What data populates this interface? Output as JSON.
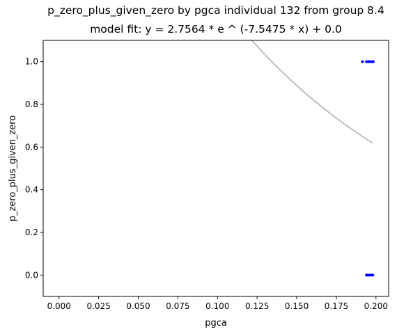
{
  "chart_data": {
    "type": "scatter",
    "title": "p_zero_plus_given_zero by pgca individual 132 from group 8.4",
    "subtitle": "model fit: y = 2.7564 * e ^ (-7.5475 * x) + 0.0",
    "xlabel": "pgca",
    "ylabel": "p_zero_plus_given_zero",
    "xlim": [
      -0.01,
      0.208
    ],
    "ylim": [
      -0.1,
      1.1
    ],
    "xticks": [
      0.0,
      0.025,
      0.05,
      0.075,
      0.1,
      0.125,
      0.15,
      0.175,
      0.2
    ],
    "xtick_labels": [
      "0.000",
      "0.025",
      "0.050",
      "0.075",
      "0.100",
      "0.125",
      "0.150",
      "0.175",
      "0.200"
    ],
    "yticks": [
      0.0,
      0.2,
      0.4,
      0.6,
      0.8,
      1.0
    ],
    "ytick_labels": [
      "0.0",
      "0.2",
      "0.4",
      "0.6",
      "0.8",
      "1.0"
    ],
    "grid": false,
    "series": [
      {
        "kind": "points",
        "color": "#0000ff",
        "x": [
          0.1915,
          0.194,
          0.1948,
          0.1955,
          0.1962,
          0.1975,
          0.1983,
          0.194,
          0.1948,
          0.1958,
          0.1972,
          0.198
        ],
        "y": [
          1.0,
          1.0,
          1.0,
          1.0,
          1.0,
          1.0,
          1.0,
          0.0,
          0.0,
          0.0,
          0.0,
          0.0
        ]
      },
      {
        "kind": "fit-curve",
        "color": "#b0b0b0",
        "a": 2.7564,
        "b": -7.5475,
        "c": 0.0,
        "x_range": [
          0.0,
          0.198
        ]
      }
    ]
  }
}
